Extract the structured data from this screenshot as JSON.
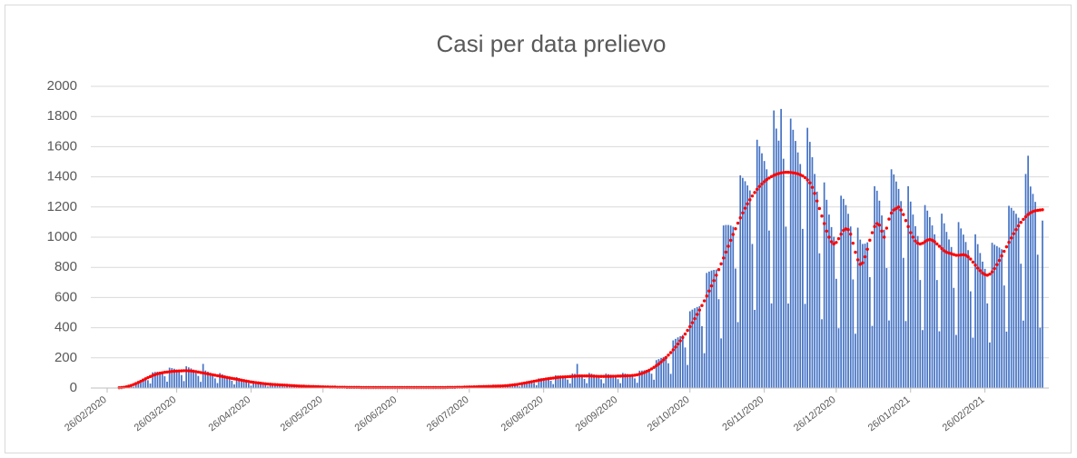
{
  "chart_data": {
    "type": "bar",
    "title": "Casi per data prelievo",
    "ylim": [
      0,
      2000
    ],
    "yticks": [
      0,
      200,
      400,
      600,
      800,
      1000,
      1200,
      1400,
      1600,
      1800,
      2000
    ],
    "grid": true,
    "categories": [
      "26/02/2020",
      null,
      null,
      null,
      null,
      null,
      null,
      null,
      null,
      null,
      null,
      null,
      null,
      null,
      null,
      null,
      null,
      null,
      null,
      null,
      null,
      null,
      null,
      null,
      null,
      null,
      null,
      null,
      null,
      "26/03/2020",
      null,
      null,
      null,
      null,
      null,
      null,
      null,
      null,
      null,
      null,
      null,
      null,
      null,
      null,
      null,
      null,
      null,
      null,
      null,
      null,
      null,
      null,
      null,
      null,
      null,
      null,
      null,
      null,
      null,
      null,
      "26/04/2020",
      null,
      null,
      null,
      null,
      null,
      null,
      null,
      null,
      null,
      null,
      null,
      null,
      null,
      null,
      null,
      null,
      null,
      null,
      null,
      null,
      null,
      null,
      null,
      null,
      null,
      null,
      null,
      null,
      null,
      "26/05/2020",
      null,
      null,
      null,
      null,
      null,
      null,
      null,
      null,
      null,
      null,
      null,
      null,
      null,
      null,
      null,
      null,
      null,
      null,
      null,
      null,
      null,
      null,
      null,
      null,
      null,
      null,
      null,
      null,
      null,
      null,
      "26/06/2020",
      null,
      null,
      null,
      null,
      null,
      null,
      null,
      null,
      null,
      null,
      null,
      null,
      null,
      null,
      null,
      null,
      null,
      null,
      null,
      null,
      null,
      null,
      null,
      null,
      null,
      null,
      null,
      null,
      null,
      "26/07/2020",
      null,
      null,
      null,
      null,
      null,
      null,
      null,
      null,
      null,
      null,
      null,
      null,
      null,
      null,
      null,
      null,
      null,
      null,
      null,
      null,
      null,
      null,
      null,
      null,
      null,
      null,
      null,
      null,
      null,
      null,
      "26/08/2020",
      null,
      null,
      null,
      null,
      null,
      null,
      null,
      null,
      null,
      null,
      null,
      null,
      null,
      null,
      null,
      null,
      null,
      null,
      null,
      null,
      null,
      null,
      null,
      null,
      null,
      null,
      null,
      null,
      null,
      null,
      "26/09/2020",
      null,
      null,
      null,
      null,
      null,
      null,
      null,
      null,
      null,
      null,
      null,
      null,
      null,
      null,
      null,
      null,
      null,
      null,
      null,
      null,
      null,
      null,
      null,
      null,
      null,
      null,
      null,
      null,
      null,
      "26/10/2020",
      null,
      null,
      null,
      null,
      null,
      null,
      null,
      null,
      null,
      null,
      null,
      null,
      null,
      null,
      null,
      null,
      null,
      null,
      null,
      null,
      null,
      null,
      null,
      null,
      null,
      null,
      null,
      null,
      null,
      null,
      "26/11/2020",
      null,
      null,
      null,
      null,
      null,
      null,
      null,
      null,
      null,
      null,
      null,
      null,
      null,
      null,
      null,
      null,
      null,
      null,
      null,
      null,
      null,
      null,
      null,
      null,
      null,
      null,
      null,
      null,
      null,
      "26/12/2020",
      null,
      null,
      null,
      null,
      null,
      null,
      null,
      null,
      null,
      null,
      null,
      null,
      null,
      null,
      null,
      null,
      null,
      null,
      null,
      null,
      null,
      null,
      null,
      null,
      null,
      null,
      null,
      null,
      null,
      null,
      "26/01/2021",
      null,
      null,
      null,
      null,
      null,
      null,
      null,
      null,
      null,
      null,
      null,
      null,
      null,
      null,
      null,
      null,
      null,
      null,
      null,
      null,
      null,
      null,
      null,
      null,
      null,
      null,
      null,
      null,
      null,
      null,
      "26/02/2021",
      null,
      null,
      null,
      null,
      null,
      null,
      null,
      null,
      null,
      null,
      null,
      null,
      null,
      null,
      null,
      null,
      null,
      null,
      null,
      null,
      null,
      null,
      null,
      null
    ],
    "series": [
      {
        "color": "#4472c4",
        "values": [
          0,
          1,
          0,
          2,
          1,
          3,
          4,
          6,
          9,
          13,
          13,
          9,
          38,
          44,
          52,
          58,
          64,
          52,
          30,
          104,
          107,
          108,
          108,
          106,
          78,
          42,
          135,
          132,
          128,
          123,
          119,
          86,
          46,
          144,
          137,
          130,
          122,
          114,
          80,
          41,
          160,
          116,
          108,
          100,
          92,
          64,
          33,
          99,
          91,
          84,
          77,
          70,
          48,
          24,
          73,
          66,
          60,
          54,
          48,
          32,
          16,
          48,
          43,
          39,
          35,
          32,
          21,
          10,
          31,
          29,
          26,
          24,
          22,
          15,
          8,
          23,
          20,
          18,
          17,
          15,
          10,
          5,
          15,
          13,
          13,
          11,
          11,
          7,
          4,
          10,
          10,
          8,
          8,
          6,
          5,
          2,
          6,
          6,
          6,
          6,
          4,
          3,
          2,
          5,
          5,
          5,
          3,
          3,
          2,
          1,
          4,
          4,
          3,
          3,
          3,
          2,
          1,
          4,
          4,
          3,
          3,
          3,
          2,
          1,
          4,
          4,
          3,
          3,
          3,
          2,
          1,
          4,
          4,
          3,
          3,
          3,
          2,
          1,
          4,
          4,
          3,
          3,
          4,
          3,
          2,
          5,
          6,
          6,
          6,
          6,
          5,
          3,
          9,
          10,
          9,
          10,
          9,
          8,
          4,
          14,
          13,
          14,
          13,
          14,
          10,
          6,
          19,
          19,
          21,
          22,
          23,
          18,
          11,
          38,
          40,
          41,
          43,
          44,
          34,
          19,
          64,
          65,
          66,
          66,
          65,
          48,
          26,
          85,
          84,
          83,
          80,
          78,
          56,
          30,
          96,
          94,
          160,
          88,
          84,
          60,
          32,
          100,
          95,
          90,
          86,
          81,
          58,
          31,
          96,
          92,
          89,
          86,
          82,
          59,
          32,
          100,
          96,
          93,
          90,
          87,
          64,
          35,
          115,
          116,
          118,
          121,
          124,
          95,
          55,
          185,
          192,
          199,
          206,
          212,
          164,
          94,
          316,
          326,
          336,
          344,
          352,
          269,
          153,
          509,
          520,
          529,
          537,
          543,
          410,
          231,
          763,
          772,
          779,
          783,
          785,
          589,
          329,
          1078,
          1081,
          1081,
          1077,
          1069,
          792,
          437,
          1410,
          1393,
          1371,
          1343,
          1310,
          955,
          518,
          1646,
          1603,
          1556,
          1505,
          1450,
          1044,
          561,
          1840,
          1720,
          1640,
          1850,
          1520,
          1070,
          560,
          1786,
          1712,
          1638,
          1562,
          1485,
          1055,
          558,
          1725,
          1632,
          1530,
          1419,
          1302,
          893,
          456,
          1363,
          1248,
          1150,
          1067,
          1003,
          724,
          396,
          1275,
          1254,
          1213,
          1155,
          1071,
          720,
          360,
          1063,
          984,
          955,
          957,
          966,
          735,
          412,
          1338,
          1308,
          1242,
          1144,
          1050,
          795,
          448,
          1450,
          1416,
          1369,
          1320,
          1239,
          863,
          444,
          1338,
          1236,
          1150,
          1073,
          1008,
          716,
          384,
          1213,
          1176,
          1133,
          1078,
          1019,
          716,
          376,
          1156,
          1092,
          1035,
          985,
          935,
          664,
          352,
          1100,
          1058,
          1017,
          968,
          914,
          641,
          334,
          1019,
          954,
          895,
          838,
          790,
          561,
          302,
          963,
          950,
          941,
          931,
          920,
          680,
          374,
          1208,
          1194,
          1176,
          1155,
          1129,
          824,
          447,
          1419,
          1540,
          1336,
          1287,
          1234,
          884,
          400,
          1110
        ]
      },
      {
        "type": "line",
        "color": "#ff0000",
        "values": [
          null,
          null,
          null,
          null,
          null,
          2,
          3,
          5,
          8,
          12,
          17,
          23,
          30,
          37,
          45,
          53,
          61,
          69,
          76,
          83,
          89,
          94,
          98,
          101,
          104,
          106,
          108,
          110,
          111,
          112,
          113,
          114,
          115,
          115,
          114,
          113,
          111,
          109,
          106,
          103,
          100,
          97,
          94,
          91,
          88,
          85,
          82,
          79,
          76,
          73,
          70,
          67,
          64,
          61,
          58,
          55,
          52,
          49,
          46,
          43,
          40,
          38,
          36,
          34,
          32,
          30,
          28,
          26,
          25,
          24,
          23,
          22,
          21,
          20,
          19,
          18,
          17,
          16,
          15,
          14,
          13,
          12,
          12,
          11,
          11,
          10,
          10,
          9,
          9,
          8,
          8,
          7,
          7,
          6,
          6,
          6,
          5,
          5,
          5,
          5,
          4,
          4,
          4,
          4,
          4,
          4,
          3,
          3,
          3,
          3,
          3,
          3,
          3,
          3,
          3,
          3,
          3,
          3,
          3,
          3,
          3,
          3,
          3,
          3,
          3,
          3,
          3,
          3,
          3,
          3,
          3,
          3,
          3,
          3,
          3,
          3,
          3,
          3,
          3,
          3,
          3,
          3,
          4,
          4,
          4,
          4,
          5,
          5,
          5,
          6,
          6,
          7,
          7,
          8,
          8,
          9,
          9,
          10,
          10,
          11,
          11,
          12,
          12,
          13,
          13,
          14,
          15,
          16,
          18,
          20,
          22,
          24,
          27,
          30,
          33,
          36,
          39,
          42,
          45,
          48,
          51,
          54,
          57,
          60,
          62,
          64,
          66,
          68,
          70,
          72,
          73,
          74,
          75,
          76,
          77,
          78,
          79,
          80,
          80,
          80,
          80,
          80,
          79,
          78,
          78,
          77,
          77,
          77,
          77,
          77,
          77,
          78,
          78,
          79,
          79,
          80,
          80,
          81,
          82,
          83,
          85,
          88,
          92,
          97,
          103,
          110,
          118,
          127,
          137,
          148,
          160,
          173,
          187,
          202,
          218,
          235,
          253,
          272,
          292,
          313,
          335,
          358,
          382,
          407,
          433,
          460,
          488,
          517,
          547,
          578,
          610,
          643,
          677,
          712,
          748,
          785,
          823,
          862,
          901,
          940,
          979,
          1018,
          1056,
          1093,
          1128,
          1161,
          1192,
          1221,
          1248,
          1273,
          1296,
          1317,
          1336,
          1353,
          1368,
          1381,
          1392,
          1402,
          1410,
          1417,
          1422,
          1426,
          1429,
          1430,
          1430,
          1429,
          1427,
          1424,
          1420,
          1414,
          1406,
          1395,
          1380,
          1360,
          1330,
          1290,
          1240,
          1190,
          1140,
          1090,
          1040,
          1000,
          970,
          955,
          965,
          990,
          1020,
          1045,
          1055,
          1050,
          1020,
          960,
          900,
          850,
          820,
          830,
          870,
          920,
          980,
          1030,
          1070,
          1090,
          1080,
          1040,
          1000,
          1060,
          1120,
          1160,
          1180,
          1190,
          1200,
          1180,
          1150,
          1110,
          1070,
          1030,
          1000,
          975,
          960,
          955,
          960,
          970,
          980,
          985,
          980,
          970,
          955,
          940,
          925,
          910,
          900,
          895,
          890,
          885,
          880,
          880,
          882,
          884,
          880,
          870,
          855,
          835,
          815,
          795,
          778,
          762,
          752,
          748,
          755,
          770,
          792,
          818,
          846,
          876,
          906,
          936,
          966,
          995,
          1023,
          1050,
          1075,
          1098,
          1118,
          1135,
          1150,
          1162,
          1170,
          1175,
          1178,
          1180,
          1182
        ]
      }
    ]
  }
}
